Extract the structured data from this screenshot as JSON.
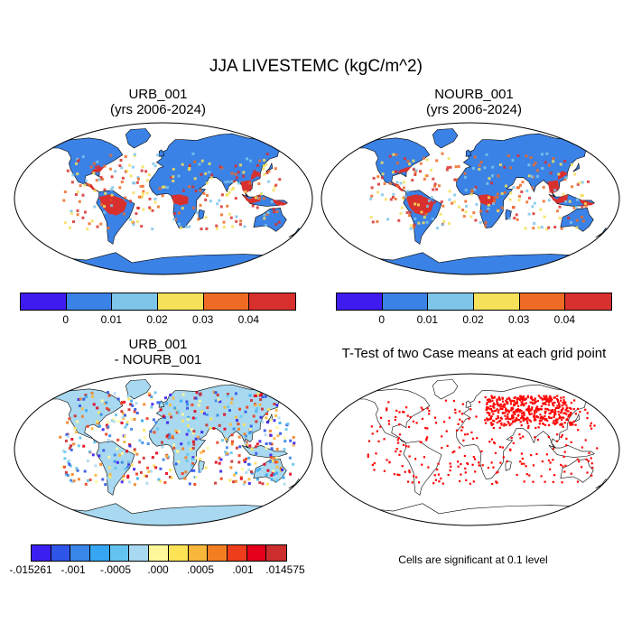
{
  "figure": {
    "title": "JJA LIVESTEMC (kgC/m^2)"
  },
  "panels": [
    {
      "id": "p1",
      "title": "URB_001",
      "subtitle": "(yrs 2006-2024)"
    },
    {
      "id": "p2",
      "title": "NOURB_001",
      "subtitle": "(yrs 2006-2024)"
    },
    {
      "id": "p3",
      "title": "URB_001",
      "subtitle": "- NOURB_001"
    },
    {
      "id": "p4",
      "title": "T-Test of two Case means at each grid point"
    }
  ],
  "colorbar_main": {
    "colors": [
      "#3f1bf0",
      "#3b82e6",
      "#7ec5ea",
      "#f5e15a",
      "#ef6a24",
      "#d8302e"
    ],
    "labels": [
      "0",
      "0.01",
      "0.02",
      "0.03",
      "0.04"
    ]
  },
  "colorbar_diff": {
    "colors": [
      "#3b1ff0",
      "#2f54e8",
      "#3a86e8",
      "#36a6f2",
      "#64c3ee",
      "#a8d9f0",
      "#fff89a",
      "#fde355",
      "#f8b63a",
      "#f27e21",
      "#ee3d1c",
      "#e4001a",
      "#cc2d2d"
    ],
    "labels": [
      "-.015261",
      "-.001",
      "-.0005",
      ".000",
      ".0005",
      ".001",
      ".014575"
    ]
  },
  "significance_note": "Cells are significant at 0.1 level",
  "colors": {
    "ocean": "#ffffff",
    "land_base": "#3b82e6",
    "land_high": "#d8302e",
    "diff_base": "#a8d9f0",
    "signif": "#ff0000"
  }
}
